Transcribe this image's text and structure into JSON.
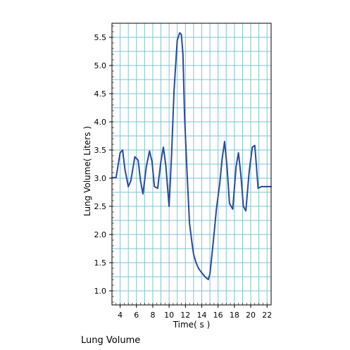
{
  "caption": "Lung Volume",
  "chart_data": {
    "type": "line",
    "xlabel": "Time( s )",
    "ylabel": "Lung Volume( Liters )",
    "xlim": [
      3,
      22.5
    ],
    "ylim": [
      0.75,
      5.75
    ],
    "x_ticks": [
      4,
      6,
      8,
      10,
      12,
      14,
      16,
      18,
      20,
      22
    ],
    "y_ticks": [
      1.0,
      1.5,
      2.0,
      2.5,
      3.0,
      3.5,
      4.0,
      4.5,
      5.0,
      5.5
    ],
    "x_tick_labels": [
      "4",
      "6",
      "8",
      "10",
      "12",
      "14",
      "16",
      "18",
      "20",
      "22"
    ],
    "y_tick_labels": [
      "1.0",
      "1.5",
      "2.0",
      "2.5",
      "3.0",
      "3.5",
      "4.0",
      "4.5",
      "5.0",
      "5.5"
    ],
    "grid": true,
    "line_color": "#2a4a9e",
    "grid_color": "#7ec4d4",
    "series": [
      {
        "x": [
          3.0,
          3.5,
          4.0,
          4.3,
          4.6,
          5.0,
          5.3,
          5.8,
          6.2,
          6.5,
          6.8,
          7.2,
          7.6,
          7.9,
          8.2,
          8.6,
          9.0,
          9.3,
          9.6,
          10.0,
          10.3,
          10.6,
          11.0,
          11.3,
          11.5,
          11.7,
          11.9,
          12.2,
          12.5,
          12.8,
          13.0,
          13.3,
          13.6,
          14.0,
          14.4,
          14.8,
          15.0,
          15.4,
          15.8,
          16.2,
          16.5,
          16.8,
          17.1,
          17.4,
          17.8,
          18.2,
          18.5,
          18.8,
          19.1,
          19.4,
          19.8,
          20.2,
          20.5,
          20.7,
          20.9,
          21.3,
          21.5,
          22.0,
          22.5
        ],
        "y": [
          3.01,
          3.01,
          3.45,
          3.5,
          3.15,
          2.85,
          2.95,
          3.38,
          3.32,
          2.95,
          2.72,
          3.2,
          3.48,
          3.3,
          2.85,
          2.82,
          3.3,
          3.55,
          3.22,
          2.5,
          3.4,
          4.55,
          5.45,
          5.58,
          5.55,
          5.2,
          4.1,
          3.1,
          2.2,
          1.85,
          1.65,
          1.5,
          1.4,
          1.32,
          1.25,
          1.2,
          1.3,
          1.85,
          2.45,
          2.9,
          3.35,
          3.65,
          3.2,
          2.55,
          2.45,
          3.2,
          3.45,
          3.05,
          2.5,
          2.42,
          3.1,
          3.55,
          3.58,
          3.22,
          2.82,
          2.85,
          2.85,
          2.85,
          2.85
        ]
      }
    ]
  }
}
